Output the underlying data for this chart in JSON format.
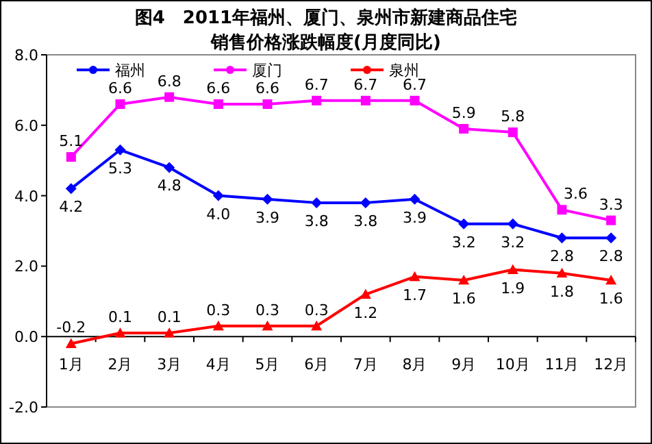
{
  "chart_data": {
    "type": "line",
    "title": "图4　2011年福州、厦门、泉州市新建商品住宅",
    "subtitle": "销售价格涨跌幅度(月度同比)",
    "categories": [
      "1月",
      "2月",
      "3月",
      "4月",
      "5月",
      "6月",
      "7月",
      "8月",
      "9月",
      "10月",
      "11月",
      "12月"
    ],
    "series": [
      {
        "name": "福州",
        "color": "#0000ff",
        "marker": "diamond",
        "values": [
          4.2,
          5.3,
          4.8,
          4.0,
          3.9,
          3.8,
          3.8,
          3.9,
          3.2,
          3.2,
          2.8,
          2.8
        ],
        "value_labels": [
          "4.2",
          "5.3",
          "4.8",
          "4.0",
          "3.9",
          "3.8",
          "3.8",
          "3.9",
          "3.2",
          "3.2",
          "2.8",
          "2.8"
        ]
      },
      {
        "name": "厦门",
        "color": "#ff00ff",
        "marker": "square",
        "values": [
          5.1,
          6.6,
          6.8,
          6.6,
          6.6,
          6.7,
          6.7,
          6.7,
          5.9,
          5.8,
          3.6,
          3.3
        ],
        "value_labels": [
          "5.1",
          "6.6",
          "6.8",
          "6.6",
          "6.6",
          "6.7",
          "6.7",
          "6.7",
          "5.9",
          "5.8",
          "3.6",
          "3.3"
        ]
      },
      {
        "name": "泉州",
        "color": "#ff0000",
        "marker": "triangle",
        "values": [
          -0.2,
          0.1,
          0.1,
          0.3,
          0.3,
          0.3,
          1.2,
          1.7,
          1.6,
          1.9,
          1.8,
          1.6
        ],
        "value_labels": [
          "-0.2",
          "0.1",
          "0.1",
          "0.3",
          "0.3",
          "0.3",
          "1.2",
          "1.7",
          "1.6",
          "1.9",
          "1.8",
          "1.6"
        ]
      }
    ],
    "ylim": [
      -2.0,
      8.0
    ],
    "yticks": [
      {
        "value": -2,
        "label": "-2.0"
      },
      {
        "value": 0,
        "label": "0.0"
      },
      {
        "value": 2,
        "label": "2.0"
      },
      {
        "value": 4,
        "label": "4.0"
      },
      {
        "value": 6,
        "label": "6.0"
      },
      {
        "value": 8,
        "label": "8.0"
      }
    ],
    "legend": "top",
    "grid": false,
    "line_style": "solid"
  }
}
